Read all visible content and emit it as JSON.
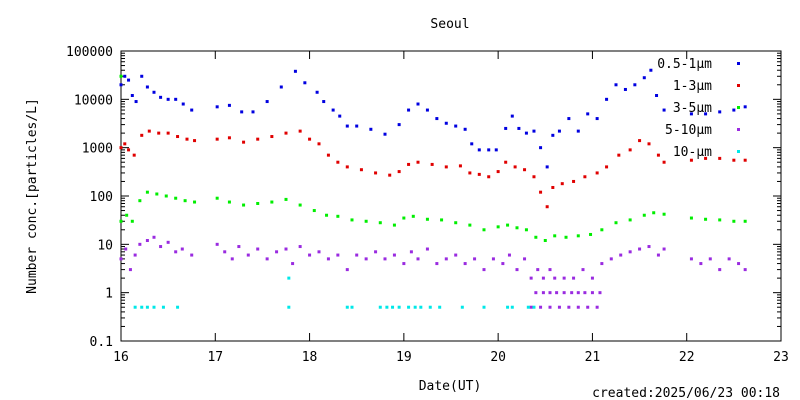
{
  "chart_data": {
    "type": "scatter",
    "title": "Seoul",
    "xlabel": "Date(UT)",
    "ylabel": "Number conc.[particles/L]",
    "footer": "created:2025/06/23 00:18",
    "x_range": [
      16,
      23
    ],
    "y_range": [
      0.1,
      100000
    ],
    "y_scale": "log",
    "grid": false,
    "legend_placement": "top-right",
    "x_ticks": [
      "16",
      "17",
      "18",
      "19",
      "20",
      "21",
      "22",
      "23"
    ],
    "y_ticks": [
      "100000",
      "10000",
      "1000",
      "100",
      "10",
      "1",
      "0.1"
    ],
    "series": [
      {
        "name": "0.5-1µm",
        "color": "#0000e0",
        "points": [
          [
            16.0,
            20000
          ],
          [
            16.04,
            30000
          ],
          [
            16.08,
            25000
          ],
          [
            16.12,
            12000
          ],
          [
            16.16,
            9000
          ],
          [
            16.22,
            30000
          ],
          [
            16.28,
            18000
          ],
          [
            16.35,
            14000
          ],
          [
            16.42,
            11000
          ],
          [
            16.5,
            10000
          ],
          [
            16.58,
            10000
          ],
          [
            16.66,
            8000
          ],
          [
            16.75,
            6000
          ],
          [
            17.02,
            7000
          ],
          [
            17.15,
            7500
          ],
          [
            17.28,
            5500
          ],
          [
            17.4,
            5500
          ],
          [
            17.55,
            9000
          ],
          [
            17.7,
            18000
          ],
          [
            17.85,
            38000
          ],
          [
            17.95,
            22000
          ],
          [
            18.08,
            14000
          ],
          [
            18.15,
            9000
          ],
          [
            18.25,
            6000
          ],
          [
            18.32,
            4500
          ],
          [
            18.4,
            2800
          ],
          [
            18.5,
            2800
          ],
          [
            18.65,
            2400
          ],
          [
            18.8,
            1900
          ],
          [
            18.95,
            3000
          ],
          [
            19.05,
            6000
          ],
          [
            19.15,
            8000
          ],
          [
            19.25,
            6000
          ],
          [
            19.35,
            4000
          ],
          [
            19.45,
            3200
          ],
          [
            19.55,
            2800
          ],
          [
            19.65,
            2400
          ],
          [
            19.72,
            1200
          ],
          [
            19.8,
            900
          ],
          [
            19.9,
            900
          ],
          [
            19.98,
            900
          ],
          [
            20.08,
            2500
          ],
          [
            20.15,
            4500
          ],
          [
            20.22,
            2500
          ],
          [
            20.3,
            2000
          ],
          [
            20.38,
            2200
          ],
          [
            20.45,
            1000
          ],
          [
            20.52,
            400
          ],
          [
            20.58,
            1800
          ],
          [
            20.65,
            2200
          ],
          [
            20.75,
            4000
          ],
          [
            20.85,
            2200
          ],
          [
            20.95,
            5000
          ],
          [
            21.05,
            4000
          ],
          [
            21.15,
            10000
          ],
          [
            21.25,
            20000
          ],
          [
            21.35,
            16000
          ],
          [
            21.45,
            20000
          ],
          [
            21.55,
            28000
          ],
          [
            21.62,
            40000
          ],
          [
            21.68,
            12000
          ],
          [
            21.76,
            6000
          ],
          [
            22.05,
            5000
          ],
          [
            22.2,
            5000
          ],
          [
            22.35,
            5500
          ],
          [
            22.5,
            6000
          ],
          [
            22.62,
            7000
          ]
        ]
      },
      {
        "name": "1-3µm",
        "color": "#e00000",
        "points": [
          [
            16.0,
            1000
          ],
          [
            16.04,
            1200
          ],
          [
            16.08,
            900
          ],
          [
            16.14,
            700
          ],
          [
            16.22,
            1800
          ],
          [
            16.3,
            2200
          ],
          [
            16.4,
            2000
          ],
          [
            16.5,
            2000
          ],
          [
            16.6,
            1700
          ],
          [
            16.7,
            1500
          ],
          [
            16.78,
            1400
          ],
          [
            17.02,
            1500
          ],
          [
            17.15,
            1600
          ],
          [
            17.3,
            1300
          ],
          [
            17.45,
            1500
          ],
          [
            17.6,
            1700
          ],
          [
            17.75,
            2000
          ],
          [
            17.9,
            2200
          ],
          [
            18.0,
            1500
          ],
          [
            18.1,
            1200
          ],
          [
            18.2,
            700
          ],
          [
            18.3,
            500
          ],
          [
            18.4,
            400
          ],
          [
            18.55,
            350
          ],
          [
            18.7,
            300
          ],
          [
            18.85,
            270
          ],
          [
            18.95,
            320
          ],
          [
            19.05,
            450
          ],
          [
            19.15,
            500
          ],
          [
            19.3,
            450
          ],
          [
            19.45,
            400
          ],
          [
            19.6,
            420
          ],
          [
            19.7,
            300
          ],
          [
            19.8,
            280
          ],
          [
            19.9,
            250
          ],
          [
            20.0,
            320
          ],
          [
            20.08,
            500
          ],
          [
            20.18,
            400
          ],
          [
            20.28,
            350
          ],
          [
            20.38,
            250
          ],
          [
            20.45,
            120
          ],
          [
            20.52,
            60
          ],
          [
            20.58,
            150
          ],
          [
            20.68,
            180
          ],
          [
            20.8,
            200
          ],
          [
            20.92,
            250
          ],
          [
            21.05,
            300
          ],
          [
            21.15,
            400
          ],
          [
            21.28,
            700
          ],
          [
            21.4,
            900
          ],
          [
            21.5,
            1400
          ],
          [
            21.6,
            1200
          ],
          [
            21.7,
            700
          ],
          [
            21.76,
            500
          ],
          [
            22.05,
            550
          ],
          [
            22.2,
            600
          ],
          [
            22.35,
            600
          ],
          [
            22.5,
            550
          ],
          [
            22.62,
            550
          ]
        ]
      },
      {
        "name": "3-5µm",
        "color": "#00ee00",
        "points": [
          [
            16.0,
            30000
          ],
          [
            16.0,
            30
          ],
          [
            16.06,
            40
          ],
          [
            16.12,
            30
          ],
          [
            16.2,
            80
          ],
          [
            16.28,
            120
          ],
          [
            16.38,
            110
          ],
          [
            16.48,
            100
          ],
          [
            16.58,
            90
          ],
          [
            16.68,
            80
          ],
          [
            16.78,
            75
          ],
          [
            17.02,
            90
          ],
          [
            17.15,
            75
          ],
          [
            17.3,
            65
          ],
          [
            17.45,
            70
          ],
          [
            17.6,
            75
          ],
          [
            17.75,
            85
          ],
          [
            17.9,
            65
          ],
          [
            18.05,
            50
          ],
          [
            18.18,
            40
          ],
          [
            18.3,
            38
          ],
          [
            18.45,
            32
          ],
          [
            18.6,
            30
          ],
          [
            18.75,
            28
          ],
          [
            18.9,
            25
          ],
          [
            19.0,
            35
          ],
          [
            19.1,
            38
          ],
          [
            19.25,
            33
          ],
          [
            19.4,
            32
          ],
          [
            19.55,
            28
          ],
          [
            19.7,
            25
          ],
          [
            19.85,
            20
          ],
          [
            20.0,
            23
          ],
          [
            20.1,
            25
          ],
          [
            20.2,
            22
          ],
          [
            20.3,
            20
          ],
          [
            20.4,
            14
          ],
          [
            20.5,
            12
          ],
          [
            20.6,
            15
          ],
          [
            20.72,
            14
          ],
          [
            20.85,
            15
          ],
          [
            20.98,
            16
          ],
          [
            21.1,
            20
          ],
          [
            21.25,
            28
          ],
          [
            21.4,
            32
          ],
          [
            21.55,
            40
          ],
          [
            21.65,
            45
          ],
          [
            21.76,
            42
          ],
          [
            22.05,
            35
          ],
          [
            22.2,
            33
          ],
          [
            22.35,
            32
          ],
          [
            22.5,
            30
          ],
          [
            22.62,
            30
          ]
        ]
      },
      {
        "name": "5-10µm",
        "color": "#9a2be0",
        "points": [
          [
            16.0,
            5
          ],
          [
            16.05,
            8
          ],
          [
            16.1,
            3
          ],
          [
            16.15,
            6
          ],
          [
            16.2,
            10
          ],
          [
            16.28,
            12
          ],
          [
            16.35,
            14
          ],
          [
            16.42,
            9
          ],
          [
            16.5,
            11
          ],
          [
            16.58,
            7
          ],
          [
            16.65,
            8
          ],
          [
            16.75,
            6
          ],
          [
            17.02,
            10
          ],
          [
            17.1,
            7
          ],
          [
            17.18,
            5
          ],
          [
            17.25,
            9
          ],
          [
            17.35,
            6
          ],
          [
            17.45,
            8
          ],
          [
            17.55,
            5
          ],
          [
            17.65,
            7
          ],
          [
            17.75,
            8
          ],
          [
            17.82,
            4
          ],
          [
            17.9,
            9
          ],
          [
            18.0,
            6
          ],
          [
            18.1,
            7
          ],
          [
            18.2,
            5
          ],
          [
            18.3,
            6
          ],
          [
            18.4,
            3
          ],
          [
            18.5,
            6
          ],
          [
            18.6,
            5
          ],
          [
            18.7,
            7
          ],
          [
            18.8,
            5
          ],
          [
            18.9,
            6
          ],
          [
            19.0,
            4
          ],
          [
            19.08,
            7
          ],
          [
            19.15,
            5
          ],
          [
            19.25,
            8
          ],
          [
            19.35,
            4
          ],
          [
            19.45,
            5
          ],
          [
            19.55,
            6
          ],
          [
            19.65,
            4
          ],
          [
            19.75,
            5
          ],
          [
            19.85,
            3
          ],
          [
            19.95,
            5
          ],
          [
            20.05,
            4
          ],
          [
            20.12,
            6
          ],
          [
            20.2,
            3
          ],
          [
            20.28,
            5
          ],
          [
            20.35,
            2
          ],
          [
            20.42,
            3
          ],
          [
            20.48,
            2
          ],
          [
            20.55,
            3
          ],
          [
            20.6,
            2
          ],
          [
            20.7,
            2
          ],
          [
            20.8,
            2
          ],
          [
            20.9,
            3
          ],
          [
            21.0,
            2
          ],
          [
            21.1,
            4
          ],
          [
            21.2,
            5
          ],
          [
            21.3,
            6
          ],
          [
            21.4,
            7
          ],
          [
            21.5,
            8
          ],
          [
            21.6,
            9
          ],
          [
            21.7,
            6
          ],
          [
            21.76,
            8
          ],
          [
            22.05,
            5
          ],
          [
            22.15,
            4
          ],
          [
            22.25,
            5
          ],
          [
            22.35,
            3
          ],
          [
            22.45,
            5
          ],
          [
            22.55,
            4
          ],
          [
            22.62,
            3
          ],
          [
            20.4,
            1
          ],
          [
            20.48,
            1
          ],
          [
            20.55,
            1
          ],
          [
            20.62,
            1
          ],
          [
            20.7,
            1
          ],
          [
            20.78,
            1
          ],
          [
            20.85,
            1
          ],
          [
            20.92,
            1
          ],
          [
            21.0,
            1
          ],
          [
            21.08,
            1
          ],
          [
            20.35,
            0.5
          ],
          [
            20.45,
            0.5
          ],
          [
            20.55,
            0.5
          ],
          [
            20.65,
            0.5
          ],
          [
            20.75,
            0.5
          ],
          [
            20.85,
            0.5
          ],
          [
            20.95,
            0.5
          ],
          [
            21.05,
            0.5
          ]
        ]
      },
      {
        "name": "10-µm",
        "color": "#00e8e8",
        "points": [
          [
            16.15,
            0.5
          ],
          [
            16.22,
            0.5
          ],
          [
            16.28,
            0.5
          ],
          [
            16.35,
            0.5
          ],
          [
            16.45,
            0.5
          ],
          [
            16.6,
            0.5
          ],
          [
            17.78,
            2
          ],
          [
            17.78,
            0.5
          ],
          [
            18.4,
            0.5
          ],
          [
            18.45,
            0.5
          ],
          [
            18.75,
            0.5
          ],
          [
            18.82,
            0.5
          ],
          [
            18.88,
            0.5
          ],
          [
            18.95,
            0.5
          ],
          [
            19.05,
            0.5
          ],
          [
            19.12,
            0.5
          ],
          [
            19.18,
            0.5
          ],
          [
            19.28,
            0.5
          ],
          [
            19.38,
            0.5
          ],
          [
            19.62,
            0.5
          ],
          [
            19.85,
            0.5
          ],
          [
            20.1,
            0.5
          ],
          [
            20.15,
            0.5
          ],
          [
            20.32,
            0.5
          ],
          [
            20.38,
            0.5
          ]
        ]
      }
    ]
  }
}
